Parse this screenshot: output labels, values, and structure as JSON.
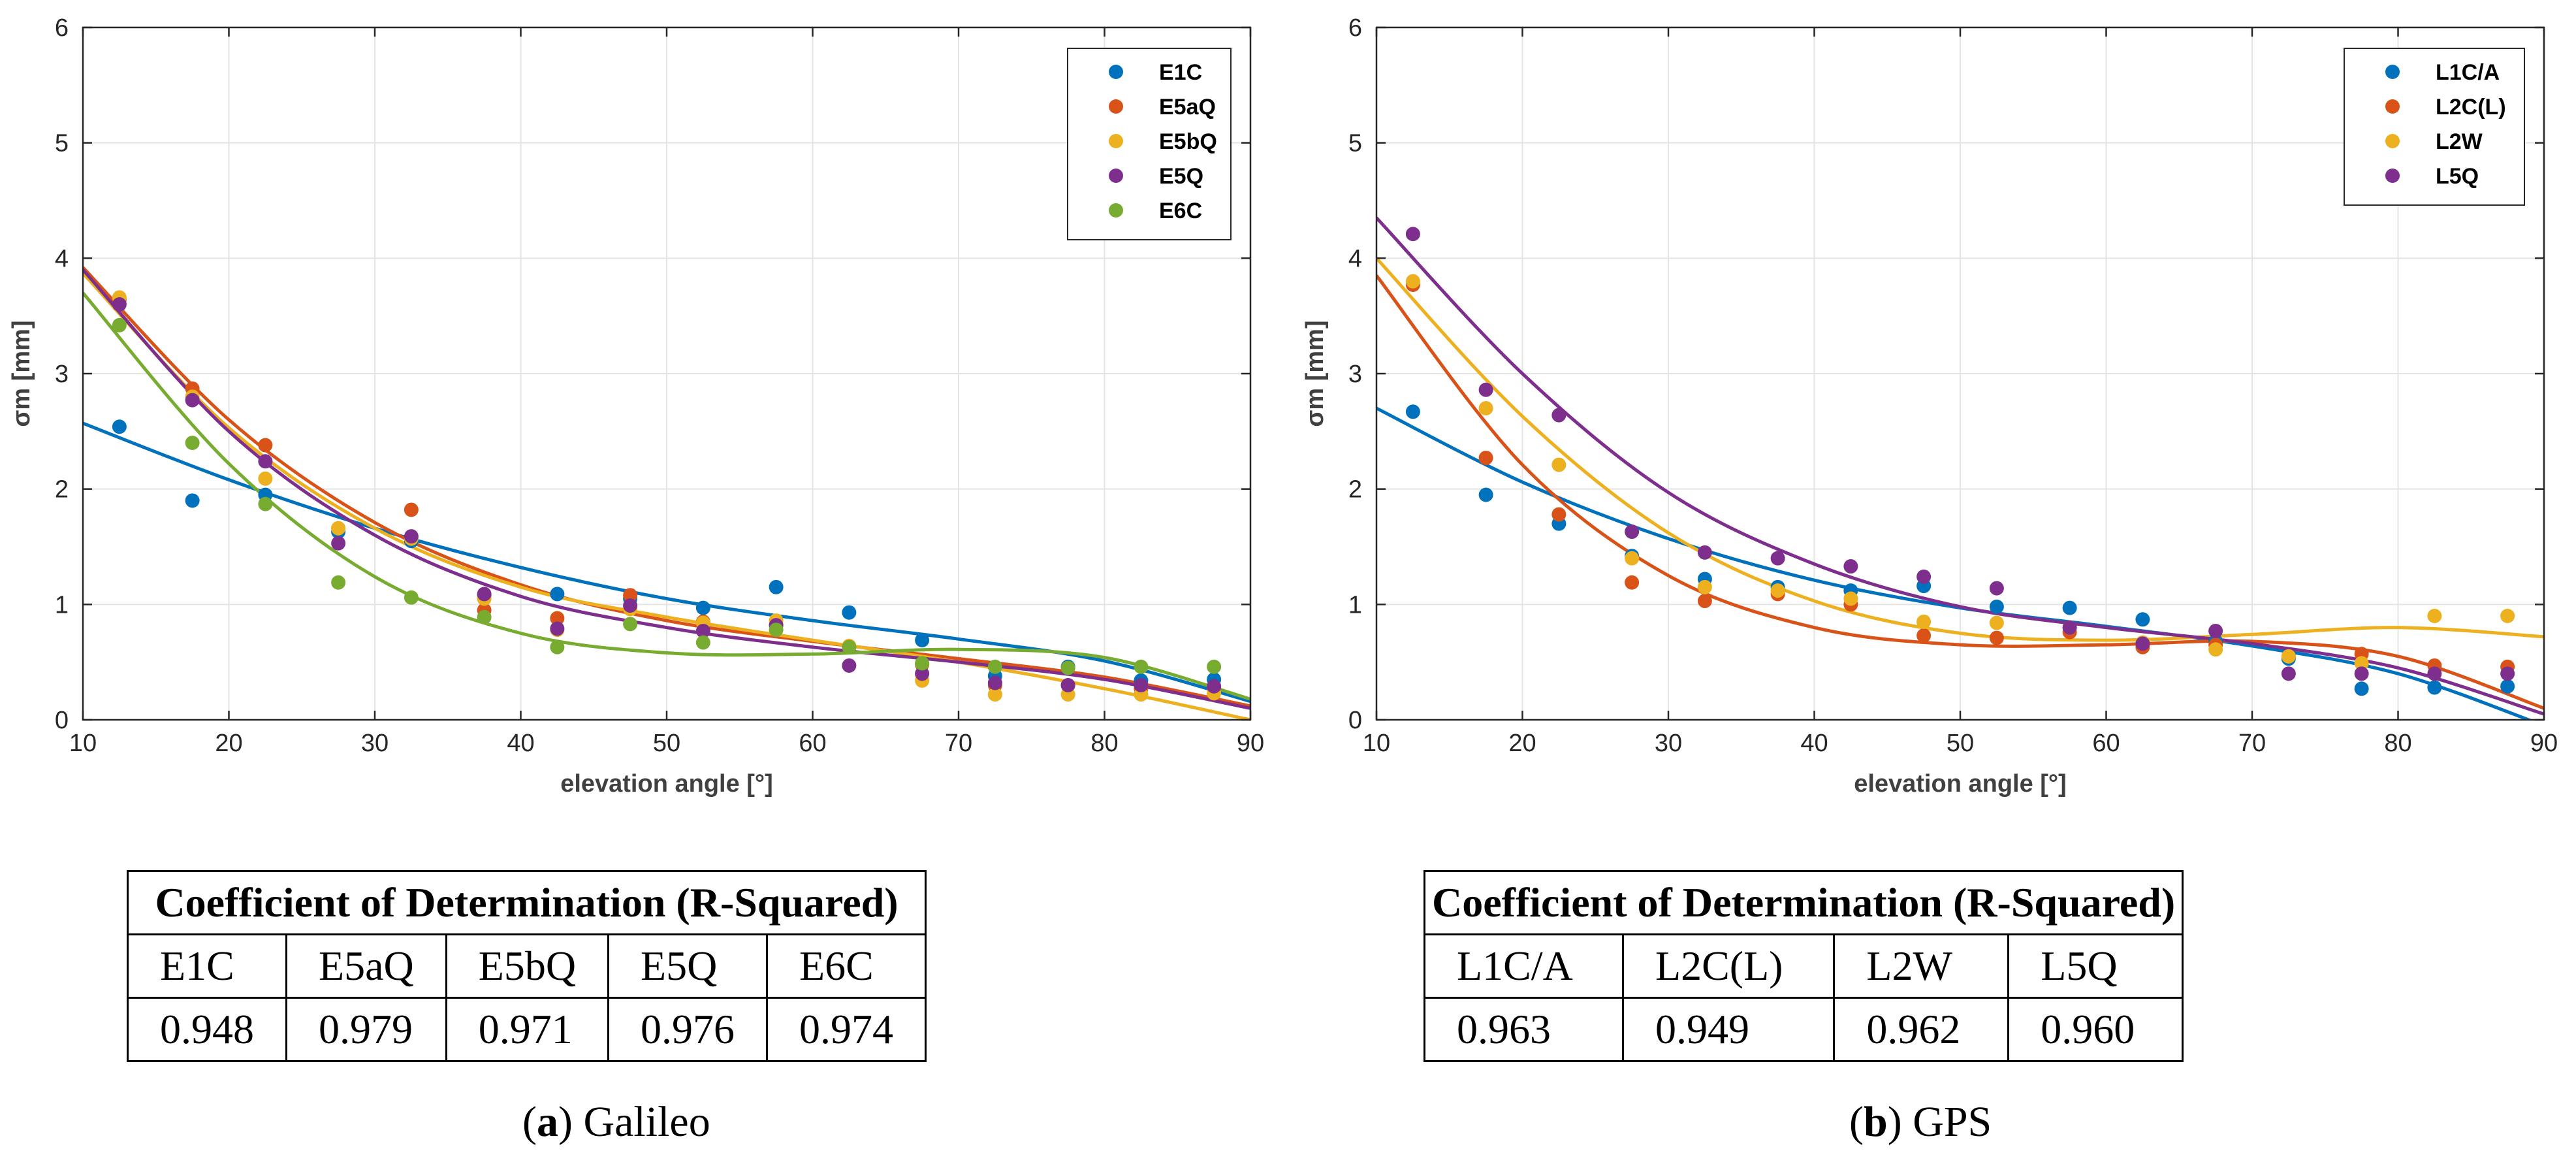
{
  "chart_data": [
    {
      "type": "scatter",
      "xlabel": "elevation angle [°]",
      "ylabel": "σm [mm]",
      "xlim": [
        10,
        90
      ],
      "ylim": [
        0,
        6
      ],
      "xticks": [
        "10",
        "20",
        "30",
        "40",
        "50",
        "60",
        "70",
        "80",
        "90"
      ],
      "yticks": [
        "0",
        "1",
        "2",
        "3",
        "4",
        "5",
        "6"
      ],
      "grid": true,
      "legend_position": "top-right",
      "x": [
        12.5,
        17.5,
        22.5,
        27.5,
        32.5,
        37.5,
        42.5,
        47.5,
        52.5,
        57.5,
        62.5,
        67.5,
        72.5,
        77.5,
        82.5,
        87.5
      ],
      "series": [
        {
          "name": "E1C",
          "color": "#0072BD",
          "values": [
            2.54,
            1.9,
            1.95,
            1.63,
            1.55,
            1.08,
            1.09,
            1.05,
            0.97,
            1.15,
            0.93,
            0.69,
            0.38,
            0.46,
            0.34,
            0.35
          ],
          "fit": [
            [
              10,
              2.57
            ],
            [
              20,
              2.08
            ],
            [
              30,
              1.66
            ],
            [
              40,
              1.32
            ],
            [
              50,
              1.05
            ],
            [
              60,
              0.86
            ],
            [
              70,
              0.7
            ],
            [
              80,
              0.51
            ],
            [
              90,
              0.16
            ]
          ]
        },
        {
          "name": "E5aQ",
          "color": "#D95319",
          "values": [
            3.64,
            2.87,
            2.38,
            1.66,
            1.82,
            0.95,
            0.88,
            1.08,
            0.85,
            0.82,
            0.63,
            0.48,
            0.3,
            0.3,
            0.27,
            0.28
          ],
          "fit": [
            [
              10,
              3.92
            ],
            [
              20,
              2.6
            ],
            [
              30,
              1.71
            ],
            [
              40,
              1.17
            ],
            [
              50,
              0.86
            ],
            [
              60,
              0.68
            ],
            [
              70,
              0.53
            ],
            [
              80,
              0.37
            ],
            [
              90,
              0.12
            ]
          ]
        },
        {
          "name": "E5bQ",
          "color": "#EDB120",
          "values": [
            3.66,
            2.8,
            2.09,
            1.66,
            1.57,
            1.05,
            0.78,
            0.96,
            0.84,
            0.86,
            0.64,
            0.34,
            0.22,
            0.22,
            0.22,
            0.23
          ],
          "fit": [
            [
              10,
              3.87
            ],
            [
              20,
              2.53
            ],
            [
              30,
              1.66
            ],
            [
              40,
              1.15
            ],
            [
              50,
              0.89
            ],
            [
              60,
              0.69
            ],
            [
              70,
              0.5
            ],
            [
              80,
              0.27
            ],
            [
              90,
              0.0
            ]
          ]
        },
        {
          "name": "E5Q",
          "color": "#7E2F8E",
          "values": [
            3.6,
            2.77,
            2.24,
            1.53,
            1.59,
            1.09,
            0.79,
            0.99,
            0.77,
            0.82,
            0.47,
            0.4,
            0.32,
            0.3,
            0.3,
            0.29
          ],
          "fit": [
            [
              10,
              3.9
            ],
            [
              20,
              2.5
            ],
            [
              30,
              1.6
            ],
            [
              40,
              1.07
            ],
            [
              50,
              0.8
            ],
            [
              60,
              0.63
            ],
            [
              70,
              0.5
            ],
            [
              80,
              0.35
            ],
            [
              90,
              0.1
            ]
          ]
        },
        {
          "name": "E6C",
          "color": "#77AC30",
          "values": [
            3.42,
            2.4,
            1.87,
            1.19,
            1.06,
            0.89,
            0.63,
            0.83,
            0.67,
            0.78,
            0.63,
            0.49,
            0.46,
            0.45,
            0.46,
            0.46
          ],
          "fit": [
            [
              10,
              3.7
            ],
            [
              20,
              2.22
            ],
            [
              30,
              1.24
            ],
            [
              40,
              0.75
            ],
            [
              50,
              0.58
            ],
            [
              60,
              0.57
            ],
            [
              70,
              0.61
            ],
            [
              80,
              0.54
            ],
            [
              90,
              0.18
            ]
          ]
        }
      ],
      "caption_label": "a",
      "caption_text": "Galileo"
    },
    {
      "type": "scatter",
      "xlabel": "elevation angle [°]",
      "ylabel": "σm [mm]",
      "xlim": [
        10,
        90
      ],
      "ylim": [
        0,
        6
      ],
      "xticks": [
        "10",
        "20",
        "30",
        "40",
        "50",
        "60",
        "70",
        "80",
        "90"
      ],
      "yticks": [
        "0",
        "1",
        "2",
        "3",
        "4",
        "5",
        "6"
      ],
      "grid": true,
      "legend_position": "top-right",
      "x": [
        12.5,
        17.5,
        22.5,
        27.5,
        32.5,
        37.5,
        42.5,
        47.5,
        52.5,
        57.5,
        62.5,
        67.5,
        72.5,
        77.5,
        82.5,
        87.5
      ],
      "series": [
        {
          "name": "L1C/A",
          "color": "#0072BD",
          "values": [
            2.67,
            1.95,
            1.7,
            1.42,
            1.22,
            1.15,
            1.12,
            1.16,
            0.98,
            0.97,
            0.87,
            0.68,
            0.53,
            0.27,
            0.28,
            0.29
          ],
          "fit": [
            [
              10,
              2.7
            ],
            [
              20,
              2.06
            ],
            [
              30,
              1.57
            ],
            [
              40,
              1.21
            ],
            [
              50,
              0.97
            ],
            [
              60,
              0.81
            ],
            [
              70,
              0.64
            ],
            [
              80,
              0.4
            ],
            [
              90,
              -0.05
            ]
          ]
        },
        {
          "name": "L2C(L)",
          "color": "#D95319",
          "values": [
            3.77,
            2.27,
            1.78,
            1.19,
            1.03,
            1.09,
            1.0,
            0.73,
            0.71,
            0.76,
            0.63,
            0.65,
            0.55,
            0.57,
            0.47,
            0.46
          ],
          "fit": [
            [
              10,
              3.85
            ],
            [
              20,
              2.21
            ],
            [
              30,
              1.25
            ],
            [
              40,
              0.8
            ],
            [
              50,
              0.65
            ],
            [
              60,
              0.65
            ],
            [
              70,
              0.68
            ],
            [
              80,
              0.55
            ],
            [
              90,
              0.1
            ]
          ]
        },
        {
          "name": "L2W",
          "color": "#EDB120",
          "values": [
            3.8,
            2.7,
            2.21,
            1.4,
            1.15,
            1.12,
            1.05,
            0.85,
            0.84,
            0.8,
            0.67,
            0.61,
            0.55,
            0.49,
            0.9,
            0.9
          ],
          "fit": [
            [
              10,
              4.0
            ],
            [
              20,
              2.63
            ],
            [
              30,
              1.62
            ],
            [
              40,
              1.03
            ],
            [
              50,
              0.75
            ],
            [
              60,
              0.69
            ],
            [
              70,
              0.74
            ],
            [
              80,
              0.8
            ],
            [
              90,
              0.72
            ]
          ]
        },
        {
          "name": "L5Q",
          "color": "#7E2F8E",
          "values": [
            4.21,
            2.86,
            2.64,
            1.63,
            1.45,
            1.4,
            1.33,
            1.24,
            1.14,
            0.8,
            0.66,
            0.77,
            0.4,
            0.4,
            0.4,
            0.4
          ],
          "fit": [
            [
              10,
              4.35
            ],
            [
              20,
              3.0
            ],
            [
              30,
              1.97
            ],
            [
              40,
              1.35
            ],
            [
              50,
              0.98
            ],
            [
              60,
              0.8
            ],
            [
              70,
              0.66
            ],
            [
              80,
              0.45
            ],
            [
              90,
              0.05
            ]
          ]
        }
      ],
      "caption_label": "b",
      "caption_text": "GPS"
    }
  ],
  "tables": [
    {
      "title": "Coefficient of Determination (R-Squared)",
      "headers": [
        "E1C",
        "E5aQ",
        "E5bQ",
        "E5Q",
        "E6C"
      ],
      "values": [
        "0.948",
        "0.979",
        "0.971",
        "0.976",
        "0.974"
      ]
    },
    {
      "title": "Coefficient of Determination (R-Squared)",
      "headers": [
        "L1C/A",
        "L2C(L)",
        "L2W",
        "L5Q"
      ],
      "values": [
        "0.963",
        "0.949",
        "0.962",
        "0.960"
      ]
    }
  ]
}
